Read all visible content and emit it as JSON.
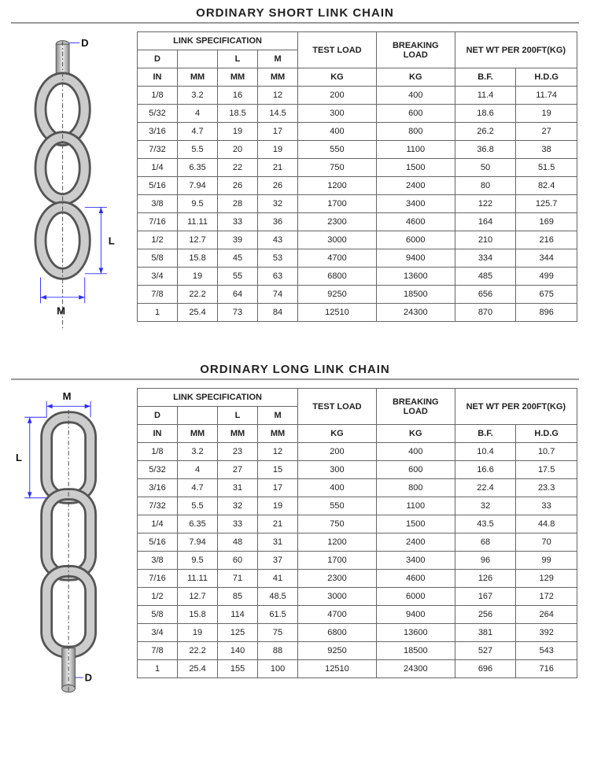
{
  "short": {
    "title": "ORDINARY SHORT LINK CHAIN",
    "headers": {
      "link_spec": "LINK SPECIFICATION",
      "D": "D",
      "L": "L",
      "M": "M",
      "test_load": "TEST LOAD",
      "breaking_load": "BREAKING LOAD",
      "net_wt": "NET WT PER 200FT(KG)",
      "units": {
        "IN": "IN",
        "MM": "MM",
        "KG": "KG",
        "BF": "B.F.",
        "HDG": "H.D.G"
      }
    },
    "rows": [
      {
        "in": "1/8",
        "d_mm": "3.2",
        "l_mm": "16",
        "m_mm": "12",
        "test": "200",
        "break": "400",
        "bf": "11.4",
        "hdg": "11.74"
      },
      {
        "in": "5/32",
        "d_mm": "4",
        "l_mm": "18.5",
        "m_mm": "14.5",
        "test": "300",
        "break": "600",
        "bf": "18.6",
        "hdg": "19"
      },
      {
        "in": "3/16",
        "d_mm": "4.7",
        "l_mm": "19",
        "m_mm": "17",
        "test": "400",
        "break": "800",
        "bf": "26.2",
        "hdg": "27"
      },
      {
        "in": "7/32",
        "d_mm": "5.5",
        "l_mm": "20",
        "m_mm": "19",
        "test": "550",
        "break": "1100",
        "bf": "36.8",
        "hdg": "38"
      },
      {
        "in": "1/4",
        "d_mm": "6.35",
        "l_mm": "22",
        "m_mm": "21",
        "test": "750",
        "break": "1500",
        "bf": "50",
        "hdg": "51.5"
      },
      {
        "in": "5/16",
        "d_mm": "7.94",
        "l_mm": "26",
        "m_mm": "26",
        "test": "1200",
        "break": "2400",
        "bf": "80",
        "hdg": "82.4"
      },
      {
        "in": "3/8",
        "d_mm": "9.5",
        "l_mm": "28",
        "m_mm": "32",
        "test": "1700",
        "break": "3400",
        "bf": "122",
        "hdg": "125.7"
      },
      {
        "in": "7/16",
        "d_mm": "11.11",
        "l_mm": "33",
        "m_mm": "36",
        "test": "2300",
        "break": "4600",
        "bf": "164",
        "hdg": "169"
      },
      {
        "in": "1/2",
        "d_mm": "12.7",
        "l_mm": "39",
        "m_mm": "43",
        "test": "3000",
        "break": "6000",
        "bf": "210",
        "hdg": "216"
      },
      {
        "in": "5/8",
        "d_mm": "15.8",
        "l_mm": "45",
        "m_mm": "53",
        "test": "4700",
        "break": "9400",
        "bf": "334",
        "hdg": "344"
      },
      {
        "in": "3/4",
        "d_mm": "19",
        "l_mm": "55",
        "m_mm": "63",
        "test": "6800",
        "break": "13600",
        "bf": "485",
        "hdg": "499"
      },
      {
        "in": "7/8",
        "d_mm": "22.2",
        "l_mm": "64",
        "m_mm": "74",
        "test": "9250",
        "break": "18500",
        "bf": "656",
        "hdg": "675"
      },
      {
        "in": "1",
        "d_mm": "25.4",
        "l_mm": "73",
        "m_mm": "84",
        "test": "12510",
        "break": "24300",
        "bf": "870",
        "hdg": "896"
      }
    ],
    "diagram": {
      "D": "D",
      "L": "L",
      "M": "M"
    }
  },
  "long": {
    "title": "ORDINARY LONG LINK CHAIN",
    "headers": {
      "link_spec": "LINK SPECIFICATION",
      "D": "D",
      "L": "L",
      "M": "M",
      "test_load": "TEST LOAD",
      "breaking_load": "BREAKING LOAD",
      "net_wt": "NET WT PER 200FT(KG)",
      "units": {
        "IN": "IN",
        "MM": "MM",
        "KG": "KG",
        "BF": "B.F.",
        "HDG": "H.D.G"
      }
    },
    "rows": [
      {
        "in": "1/8",
        "d_mm": "3.2",
        "l_mm": "23",
        "m_mm": "12",
        "test": "200",
        "break": "400",
        "bf": "10.4",
        "hdg": "10.7"
      },
      {
        "in": "5/32",
        "d_mm": "4",
        "l_mm": "27",
        "m_mm": "15",
        "test": "300",
        "break": "600",
        "bf": "16.6",
        "hdg": "17.5"
      },
      {
        "in": "3/16",
        "d_mm": "4.7",
        "l_mm": "31",
        "m_mm": "17",
        "test": "400",
        "break": "800",
        "bf": "22.4",
        "hdg": "23.3"
      },
      {
        "in": "7/32",
        "d_mm": "5.5",
        "l_mm": "32",
        "m_mm": "19",
        "test": "550",
        "break": "1100",
        "bf": "32",
        "hdg": "33"
      },
      {
        "in": "1/4",
        "d_mm": "6.35",
        "l_mm": "33",
        "m_mm": "21",
        "test": "750",
        "break": "1500",
        "bf": "43.5",
        "hdg": "44.8"
      },
      {
        "in": "5/16",
        "d_mm": "7.94",
        "l_mm": "48",
        "m_mm": "31",
        "test": "1200",
        "break": "2400",
        "bf": "68",
        "hdg": "70"
      },
      {
        "in": "3/8",
        "d_mm": "9.5",
        "l_mm": "60",
        "m_mm": "37",
        "test": "1700",
        "break": "3400",
        "bf": "96",
        "hdg": "99"
      },
      {
        "in": "7/16",
        "d_mm": "11.11",
        "l_mm": "71",
        "m_mm": "41",
        "test": "2300",
        "break": "4600",
        "bf": "126",
        "hdg": "129"
      },
      {
        "in": "1/2",
        "d_mm": "12.7",
        "l_mm": "85",
        "m_mm": "48.5",
        "test": "3000",
        "break": "6000",
        "bf": "167",
        "hdg": "172"
      },
      {
        "in": "5/8",
        "d_mm": "15.8",
        "l_mm": "114",
        "m_mm": "61.5",
        "test": "4700",
        "break": "9400",
        "bf": "256",
        "hdg": "264"
      },
      {
        "in": "3/4",
        "d_mm": "19",
        "l_mm": "125",
        "m_mm": "75",
        "test": "6800",
        "break": "13600",
        "bf": "381",
        "hdg": "392"
      },
      {
        "in": "7/8",
        "d_mm": "22.2",
        "l_mm": "140",
        "m_mm": "88",
        "test": "9250",
        "break": "18500",
        "bf": "527",
        "hdg": "543"
      },
      {
        "in": "1",
        "d_mm": "25.4",
        "l_mm": "155",
        "m_mm": "100",
        "test": "12510",
        "break": "24300",
        "bf": "696",
        "hdg": "716"
      }
    ],
    "diagram": {
      "D": "D",
      "L": "L",
      "M": "M"
    }
  },
  "style": {
    "stroke": "#555555",
    "fill": "#d9d9d9",
    "dim": "#2d2dff",
    "dash": "#444444",
    "text": "#111111",
    "title_fontsize": "15",
    "cell_fontsize": "11"
  }
}
